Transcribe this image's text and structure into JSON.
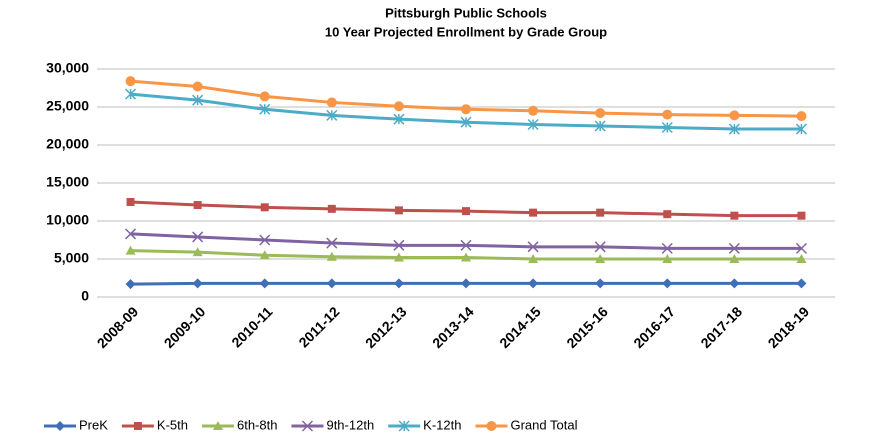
{
  "chart_data": {
    "type": "line",
    "title": "Pittsburgh Public Schools",
    "subtitle": "10 Year Projected Enrollment by Grade Group",
    "categories": [
      "2008-09",
      "2009-10",
      "2010-11",
      "2011-12",
      "2012-13",
      "2013-14",
      "2014-15",
      "2015-16",
      "2016-17",
      "2017-18",
      "2018-19"
    ],
    "series": [
      {
        "name": "PreK",
        "color": "#3f6fb5",
        "marker": "diamond",
        "values": [
          1700,
          1800,
          1800,
          1800,
          1800,
          1800,
          1800,
          1800,
          1800,
          1800,
          1800
        ]
      },
      {
        "name": "K-5th",
        "color": "#c0504d",
        "marker": "square",
        "values": [
          12500,
          12100,
          11800,
          11600,
          11400,
          11300,
          11100,
          11100,
          10900,
          10700,
          10700
        ]
      },
      {
        "name": "6th-8th",
        "color": "#9bbb59",
        "marker": "triangle",
        "values": [
          6100,
          5900,
          5500,
          5300,
          5200,
          5200,
          5000,
          5000,
          5000,
          5000,
          5000
        ]
      },
      {
        "name": "9th-12th",
        "color": "#8064a2",
        "marker": "x",
        "values": [
          8300,
          7900,
          7500,
          7100,
          6800,
          6800,
          6600,
          6600,
          6400,
          6400,
          6400
        ]
      },
      {
        "name": "K-12th",
        "color": "#4bacc6",
        "marker": "asterisk",
        "values": [
          26700,
          25900,
          24700,
          23900,
          23400,
          23000,
          22700,
          22500,
          22300,
          22100,
          22100
        ]
      },
      {
        "name": "Grand Total",
        "color": "#f79646",
        "marker": "circle",
        "values": [
          28400,
          27700,
          26400,
          25600,
          25100,
          24700,
          24500,
          24200,
          24000,
          23900,
          23800
        ]
      }
    ],
    "ylim": [
      0,
      30000
    ],
    "yticks": [
      0,
      {
        "value": 5000,
        "label": "5,000"
      },
      {
        "value": 10000,
        "label": "10,000"
      },
      {
        "value": 15000,
        "label": "15,000"
      },
      {
        "value": 20000,
        "label": "20,000"
      },
      {
        "value": 25000,
        "label": "25,000"
      },
      {
        "value": 30000,
        "label": "30,000"
      }
    ],
    "grid": true,
    "legend": "bottom"
  }
}
